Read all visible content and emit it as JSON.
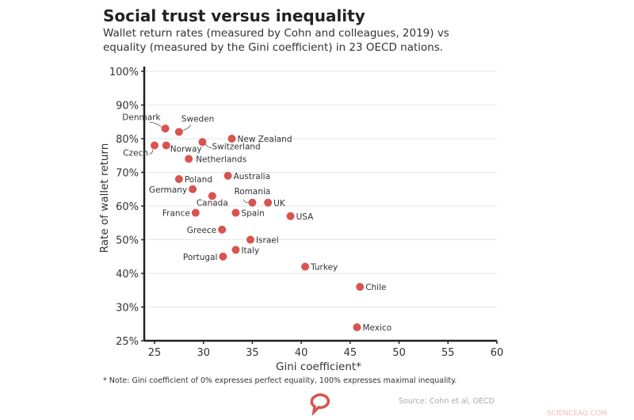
{
  "title": "Social trust versus inequality",
  "subtitle": "Wallet return rates (measured by Cohn and colleagues, 2019) vs equality (measured by the Gini coefficient) in 23 OECD nations.",
  "note": "* Note: Gini coefficient of 0% expresses perfect equality, 100% expresses maximal inequality.",
  "source": "Source: Cohn et al, OECD",
  "watermark": "SCIENCEAQ.COM",
  "logo": "speech-bubble-logo",
  "colors": {
    "point": "#d9534f",
    "axis": "#222222",
    "grid": "#e6e6e6",
    "logo": "#d9534f"
  },
  "chart_data": {
    "type": "scatter",
    "xlabel": "Gini coefficient*",
    "ylabel": "Rate of wallet return",
    "xlim": [
      24,
      60
    ],
    "ylim": [
      25,
      100
    ],
    "xticks": [
      25,
      30,
      35,
      40,
      45,
      50,
      55,
      60
    ],
    "xtick_labels": [
      "25",
      "30",
      "35",
      "40",
      "45",
      "50",
      "55",
      "60"
    ],
    "yticks": [
      25,
      30,
      40,
      50,
      60,
      70,
      80,
      90,
      100
    ],
    "ytick_labels": [
      "25%",
      "30%",
      "40%",
      "50%",
      "60%",
      "70%",
      "80%",
      "90%",
      "100%"
    ],
    "grid": "horizontal",
    "points": [
      {
        "label": "Denmark",
        "x": 26.1,
        "y": 83
      },
      {
        "label": "Sweden",
        "x": 27.5,
        "y": 82
      },
      {
        "label": "Czech",
        "x": 25.0,
        "y": 78
      },
      {
        "label": "Norway",
        "x": 26.2,
        "y": 78
      },
      {
        "label": "Switzerland",
        "x": 29.9,
        "y": 79
      },
      {
        "label": "New Zealand",
        "x": 32.9,
        "y": 80
      },
      {
        "label": "Netherlands",
        "x": 28.5,
        "y": 74
      },
      {
        "label": "Poland",
        "x": 27.5,
        "y": 68
      },
      {
        "label": "Australia",
        "x": 32.5,
        "y": 69
      },
      {
        "label": "Germany",
        "x": 28.9,
        "y": 65
      },
      {
        "label": "Canada",
        "x": 30.9,
        "y": 63
      },
      {
        "label": "Romania",
        "x": 35.0,
        "y": 61
      },
      {
        "label": "UK",
        "x": 36.6,
        "y": 61
      },
      {
        "label": "France",
        "x": 29.2,
        "y": 58
      },
      {
        "label": "Spain",
        "x": 33.3,
        "y": 58
      },
      {
        "label": "USA",
        "x": 38.9,
        "y": 57
      },
      {
        "label": "Greece",
        "x": 31.9,
        "y": 53
      },
      {
        "label": "Israel",
        "x": 34.8,
        "y": 50
      },
      {
        "label": "Italy",
        "x": 33.3,
        "y": 47
      },
      {
        "label": "Portugal",
        "x": 32.0,
        "y": 45
      },
      {
        "label": "Turkey",
        "x": 40.4,
        "y": 42
      },
      {
        "label": "Chile",
        "x": 46.0,
        "y": 36
      },
      {
        "label": "Mexico",
        "x": 45.7,
        "y": 27
      }
    ]
  }
}
